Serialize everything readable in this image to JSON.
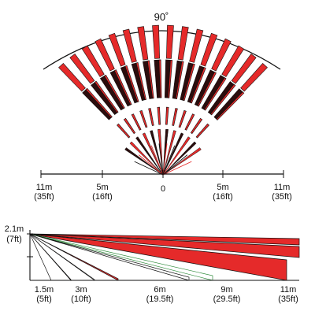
{
  "top_view": {
    "angle_label": "90˚",
    "scale_labels": [
      {
        "distance_m": "11m",
        "distance_ft": "(35ft)"
      },
      {
        "distance_m": "5m",
        "distance_ft": "(16ft)"
      },
      {
        "distance_m": "0",
        "distance_ft": ""
      },
      {
        "distance_m": "5m",
        "distance_ft": "(16ft)"
      },
      {
        "distance_m": "11m",
        "distance_ft": "(35ft)"
      }
    ]
  },
  "side_view": {
    "height_label_m": "2.1m",
    "height_label_ft": "(7ft)",
    "distance_labels": [
      {
        "distance_m": "1.5m",
        "distance_ft": "(5ft)"
      },
      {
        "distance_m": "3m",
        "distance_ft": "(10ft)"
      },
      {
        "distance_m": "6m",
        "distance_ft": "(19.5ft)"
      },
      {
        "distance_m": "9m",
        "distance_ft": "(29.5ft)"
      },
      {
        "distance_m": "11m",
        "distance_ft": "(35ft)"
      }
    ]
  },
  "colors": {
    "zone_red": "#e52a2a",
    "zone_dark": "#2b0d0d",
    "outline": "#111111",
    "green_line": "#2e8b3a"
  }
}
